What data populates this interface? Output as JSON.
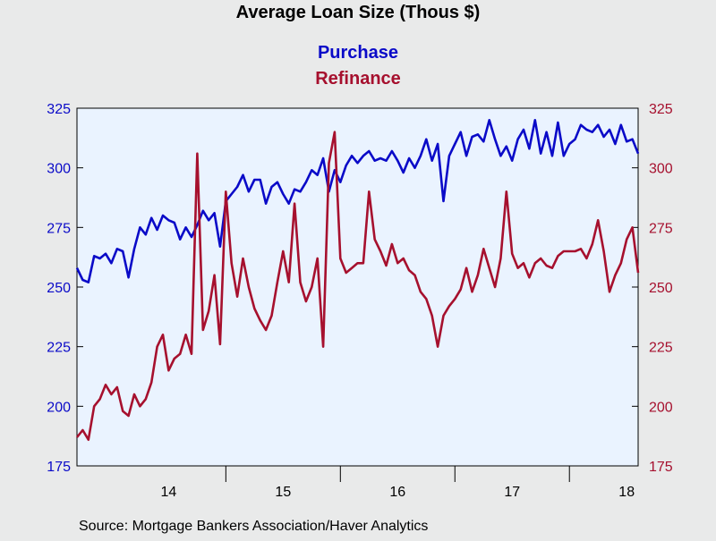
{
  "colors": {
    "background": "#e9eaea",
    "plot_background": "#eaf3ff",
    "purchase": "#0a0ac8",
    "refinance": "#a6102e",
    "axis": "#000000",
    "text": "#000000"
  },
  "chart_data": {
    "type": "line",
    "title": "Average Loan Size (Thous $)",
    "series_labels": [
      "Purchase",
      "Refinance"
    ],
    "source": "Source:  Mortgage Bankers Association/Haver Analytics",
    "x_tick_labels": [
      "14",
      "15",
      "16",
      "17",
      "18"
    ],
    "x_tick_positions": [
      2014.0,
      2015.0,
      2016.0,
      2017.0,
      2018.0
    ],
    "xlim": [
      2013.2,
      2018.1
    ],
    "left_axis": {
      "ylim": [
        175,
        325
      ],
      "ticks": [
        175,
        200,
        225,
        250,
        275,
        300,
        325
      ]
    },
    "right_axis": {
      "ylim": [
        175,
        325
      ],
      "ticks": [
        175,
        200,
        225,
        250,
        275,
        300,
        325
      ]
    },
    "grid": false,
    "series": [
      {
        "name": "Purchase",
        "axis": "left",
        "x": [
          2013.2,
          2013.25,
          2013.3,
          2013.35,
          2013.4,
          2013.45,
          2013.5,
          2013.55,
          2013.6,
          2013.65,
          2013.7,
          2013.75,
          2013.8,
          2013.85,
          2013.9,
          2013.95,
          2014.0,
          2014.05,
          2014.1,
          2014.15,
          2014.2,
          2014.25,
          2014.3,
          2014.35,
          2014.4,
          2014.45,
          2014.5,
          2014.55,
          2014.6,
          2014.65,
          2014.7,
          2014.75,
          2014.8,
          2014.85,
          2014.9,
          2014.95,
          2015.0,
          2015.05,
          2015.1,
          2015.15,
          2015.2,
          2015.25,
          2015.3,
          2015.35,
          2015.4,
          2015.45,
          2015.5,
          2015.55,
          2015.6,
          2015.65,
          2015.7,
          2015.75,
          2015.8,
          2015.85,
          2015.9,
          2015.95,
          2016.0,
          2016.05,
          2016.1,
          2016.15,
          2016.2,
          2016.25,
          2016.3,
          2016.35,
          2016.4,
          2016.45,
          2016.5,
          2016.55,
          2016.6,
          2016.65,
          2016.7,
          2016.75,
          2016.8,
          2016.85,
          2016.9,
          2016.95,
          2017.0,
          2017.05,
          2017.1,
          2017.15,
          2017.2,
          2017.25,
          2017.3,
          2017.35,
          2017.4,
          2017.45,
          2017.5,
          2017.55,
          2017.6,
          2017.65,
          2017.7,
          2017.75,
          2017.8,
          2017.85,
          2017.9,
          2017.95,
          2018.0,
          2018.05,
          2018.1
        ],
        "values": [
          258,
          253,
          252,
          263,
          262,
          264,
          260,
          266,
          265,
          254,
          266,
          275,
          272,
          279,
          274,
          280,
          278,
          277,
          270,
          275,
          271,
          276,
          282,
          278,
          281,
          267,
          286,
          289,
          292,
          297,
          290,
          295,
          295,
          285,
          292,
          294,
          289,
          285,
          291,
          290,
          294,
          299,
          297,
          304,
          290,
          299,
          294,
          301,
          305,
          302,
          305,
          307,
          303,
          304,
          303,
          307,
          303,
          298,
          304,
          300,
          305,
          312,
          303,
          310,
          286,
          305,
          310,
          315,
          305,
          313,
          314,
          311,
          320,
          312,
          305,
          309,
          303,
          312,
          316,
          308,
          320,
          306,
          315,
          305,
          319,
          305,
          310,
          312,
          318,
          316,
          315,
          318,
          313,
          316,
          310,
          318,
          311,
          312,
          306
        ]
      },
      {
        "name": "Refinance",
        "axis": "right",
        "x": [
          2013.2,
          2013.25,
          2013.3,
          2013.35,
          2013.4,
          2013.45,
          2013.5,
          2013.55,
          2013.6,
          2013.65,
          2013.7,
          2013.75,
          2013.8,
          2013.85,
          2013.9,
          2013.95,
          2014.0,
          2014.05,
          2014.1,
          2014.15,
          2014.2,
          2014.25,
          2014.3,
          2014.35,
          2014.4,
          2014.45,
          2014.5,
          2014.55,
          2014.6,
          2014.65,
          2014.7,
          2014.75,
          2014.8,
          2014.85,
          2014.9,
          2014.95,
          2015.0,
          2015.05,
          2015.1,
          2015.15,
          2015.2,
          2015.25,
          2015.3,
          2015.35,
          2015.4,
          2015.45,
          2015.5,
          2015.55,
          2015.6,
          2015.65,
          2015.7,
          2015.75,
          2015.8,
          2015.85,
          2015.9,
          2015.95,
          2016.0,
          2016.05,
          2016.1,
          2016.15,
          2016.2,
          2016.25,
          2016.3,
          2016.35,
          2016.4,
          2016.45,
          2016.5,
          2016.55,
          2016.6,
          2016.65,
          2016.7,
          2016.75,
          2016.8,
          2016.85,
          2016.9,
          2016.95,
          2017.0,
          2017.05,
          2017.1,
          2017.15,
          2017.2,
          2017.25,
          2017.3,
          2017.35,
          2017.4,
          2017.45,
          2017.5,
          2017.55,
          2017.6,
          2017.65,
          2017.7,
          2017.75,
          2017.8,
          2017.85,
          2017.9,
          2017.95,
          2018.0,
          2018.05,
          2018.1
        ],
        "values": [
          187,
          190,
          186,
          200,
          203,
          209,
          205,
          208,
          198,
          196,
          205,
          200,
          203,
          210,
          225,
          230,
          215,
          220,
          222,
          230,
          222,
          306,
          232,
          240,
          255,
          226,
          290,
          260,
          246,
          262,
          250,
          241,
          236,
          232,
          238,
          252,
          265,
          252,
          285,
          252,
          244,
          250,
          262,
          225,
          302,
          315,
          262,
          256,
          258,
          260,
          260,
          290,
          270,
          265,
          259,
          268,
          260,
          262,
          257,
          255,
          248,
          245,
          238,
          225,
          238,
          242,
          245,
          249,
          258,
          248,
          255,
          266,
          258,
          250,
          262,
          290,
          264,
          258,
          260,
          254,
          260,
          262,
          259,
          258,
          263,
          265,
          265,
          265,
          266,
          262,
          268,
          278,
          265,
          248,
          255,
          260,
          270,
          275,
          256
        ]
      }
    ]
  }
}
